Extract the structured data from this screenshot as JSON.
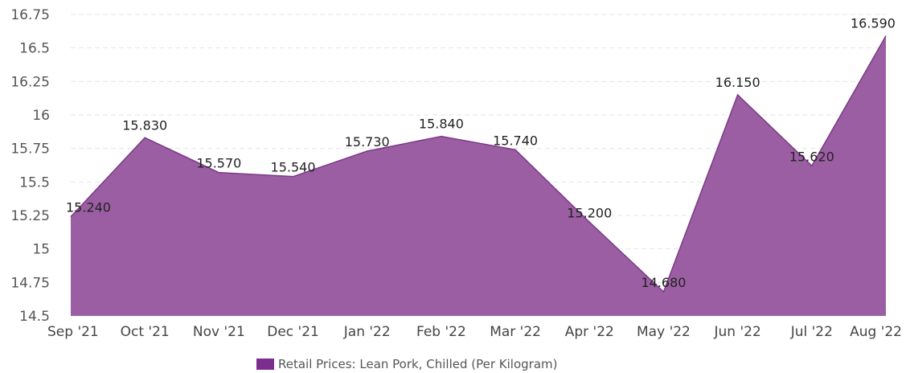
{
  "chart_data": {
    "type": "area",
    "categories": [
      "Sep '21",
      "Oct '21",
      "Nov '21",
      "Dec '21",
      "Jan '22",
      "Feb '22",
      "Mar '22",
      "Apr '22",
      "May '22",
      "Jun '22",
      "Jul '22",
      "Aug '22"
    ],
    "series": [
      {
        "name": "Retail Prices: Lean Pork, Chilled (Per Kilogram)",
        "values": [
          15.24,
          15.83,
          15.57,
          15.54,
          15.73,
          15.84,
          15.74,
          15.2,
          14.68,
          16.15,
          15.62,
          16.59
        ],
        "value_labels": [
          "15.240",
          "15.830",
          "15.570",
          "15.540",
          "15.730",
          "15.840",
          "15.740",
          "15.200",
          "14.680",
          "16.150",
          "15.620",
          "16.590"
        ]
      }
    ],
    "ylim": [
      14.5,
      16.75
    ],
    "yticks": [
      14.5,
      14.75,
      15,
      15.25,
      15.5,
      15.75,
      16,
      16.25,
      16.5,
      16.75
    ],
    "ytick_labels": [
      "14.5",
      "14.75",
      "15",
      "15.25",
      "15.5",
      "15.75",
      "16",
      "16.25",
      "16.5",
      "16.75"
    ],
    "grid": true,
    "legend_position": "bottom-center",
    "colors": {
      "area_fill": "#9b5ea3",
      "area_stroke": "#7a3b86",
      "legend_swatch": "#7b2e8e"
    }
  }
}
